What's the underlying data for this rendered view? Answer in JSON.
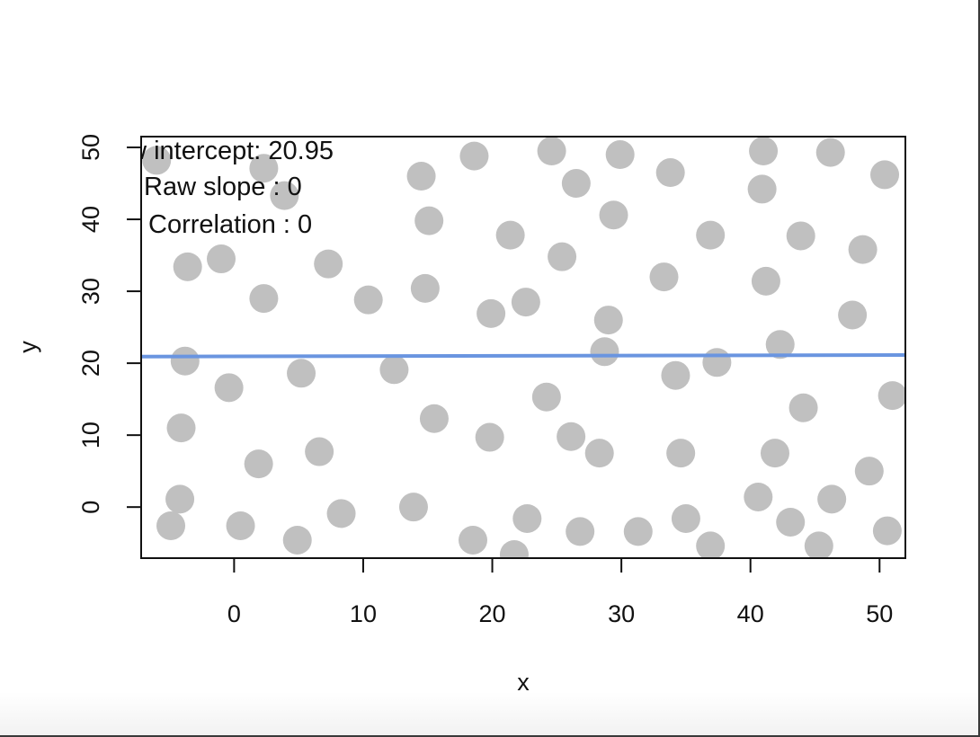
{
  "chart_data": {
    "type": "scatter",
    "title": "",
    "xlabel": "x",
    "ylabel": "y",
    "xlim": [
      -7.2,
      52
    ],
    "ylim": [
      -7.1,
      51.5
    ],
    "x_ticks": [
      0,
      10,
      20,
      30,
      40,
      50
    ],
    "y_ticks": [
      0,
      10,
      20,
      30,
      40,
      50
    ],
    "grid": false,
    "point_color": "#c0c0c0",
    "line_color": "#6a95e0",
    "regression_line": {
      "intercept": 20.95,
      "slope": 0.0035
    },
    "stats": [
      {
        "label": "Raw intercept:",
        "value": "20.95"
      },
      {
        "label": "Raw slope   :",
        "value": "0"
      },
      {
        "label": "Correlation  :",
        "value": "0"
      }
    ],
    "points": [
      [
        -6,
        48.2
      ],
      [
        -3.6,
        33.4
      ],
      [
        -3.8,
        20.3
      ],
      [
        -4.1,
        11
      ],
      [
        -4.2,
        1.1
      ],
      [
        -4.9,
        -2.6
      ],
      [
        -1,
        34.5
      ],
      [
        -0.4,
        16.6
      ],
      [
        0.5,
        -2.6
      ],
      [
        1.9,
        6
      ],
      [
        2.3,
        47.1
      ],
      [
        2.3,
        29
      ],
      [
        3.9,
        43.3
      ],
      [
        4.9,
        -4.6
      ],
      [
        5.2,
        18.6
      ],
      [
        6.6,
        7.7
      ],
      [
        7.3,
        33.8
      ],
      [
        8.3,
        -0.9
      ],
      [
        10.4,
        28.8
      ],
      [
        12.4,
        19.1
      ],
      [
        13.9,
        0
      ],
      [
        14.5,
        46
      ],
      [
        14.8,
        30.4
      ],
      [
        15.1,
        39.8
      ],
      [
        15.5,
        12.3
      ],
      [
        18.5,
        -4.6
      ],
      [
        18.6,
        48.8
      ],
      [
        19.8,
        9.7
      ],
      [
        19.9,
        26.9
      ],
      [
        21.4,
        37.8
      ],
      [
        21.7,
        -6.6
      ],
      [
        22.6,
        28.5
      ],
      [
        22.7,
        -1.6
      ],
      [
        24.2,
        15.3
      ],
      [
        24.6,
        49.5
      ],
      [
        25.4,
        34.8
      ],
      [
        26.1,
        9.8
      ],
      [
        26.5,
        45
      ],
      [
        26.8,
        -3.4
      ],
      [
        28.3,
        7.5
      ],
      [
        28.7,
        21.6
      ],
      [
        29.0,
        26
      ],
      [
        29.4,
        40.6
      ],
      [
        29.9,
        49
      ],
      [
        31.3,
        -3.4
      ],
      [
        33.3,
        32
      ],
      [
        33.8,
        46.5
      ],
      [
        34.2,
        18.3
      ],
      [
        34.6,
        7.5
      ],
      [
        35.0,
        -1.6
      ],
      [
        36.9,
        37.8
      ],
      [
        36.9,
        -5.4
      ],
      [
        37.4,
        20.1
      ],
      [
        40.6,
        1.4
      ],
      [
        40.9,
        44.2
      ],
      [
        41.0,
        49.5
      ],
      [
        41.2,
        31.4
      ],
      [
        41.9,
        7.5
      ],
      [
        42.3,
        22.6
      ],
      [
        43.1,
        -2.1
      ],
      [
        43.9,
        37.7
      ],
      [
        44.1,
        13.8
      ],
      [
        45.3,
        -5.4
      ],
      [
        46.2,
        49.3
      ],
      [
        46.3,
        1.1
      ],
      [
        47.9,
        26.7
      ],
      [
        48.7,
        35.8
      ],
      [
        49.2,
        5
      ],
      [
        50.4,
        46.2
      ],
      [
        50.6,
        -3.3
      ],
      [
        51.0,
        15.5
      ]
    ]
  }
}
